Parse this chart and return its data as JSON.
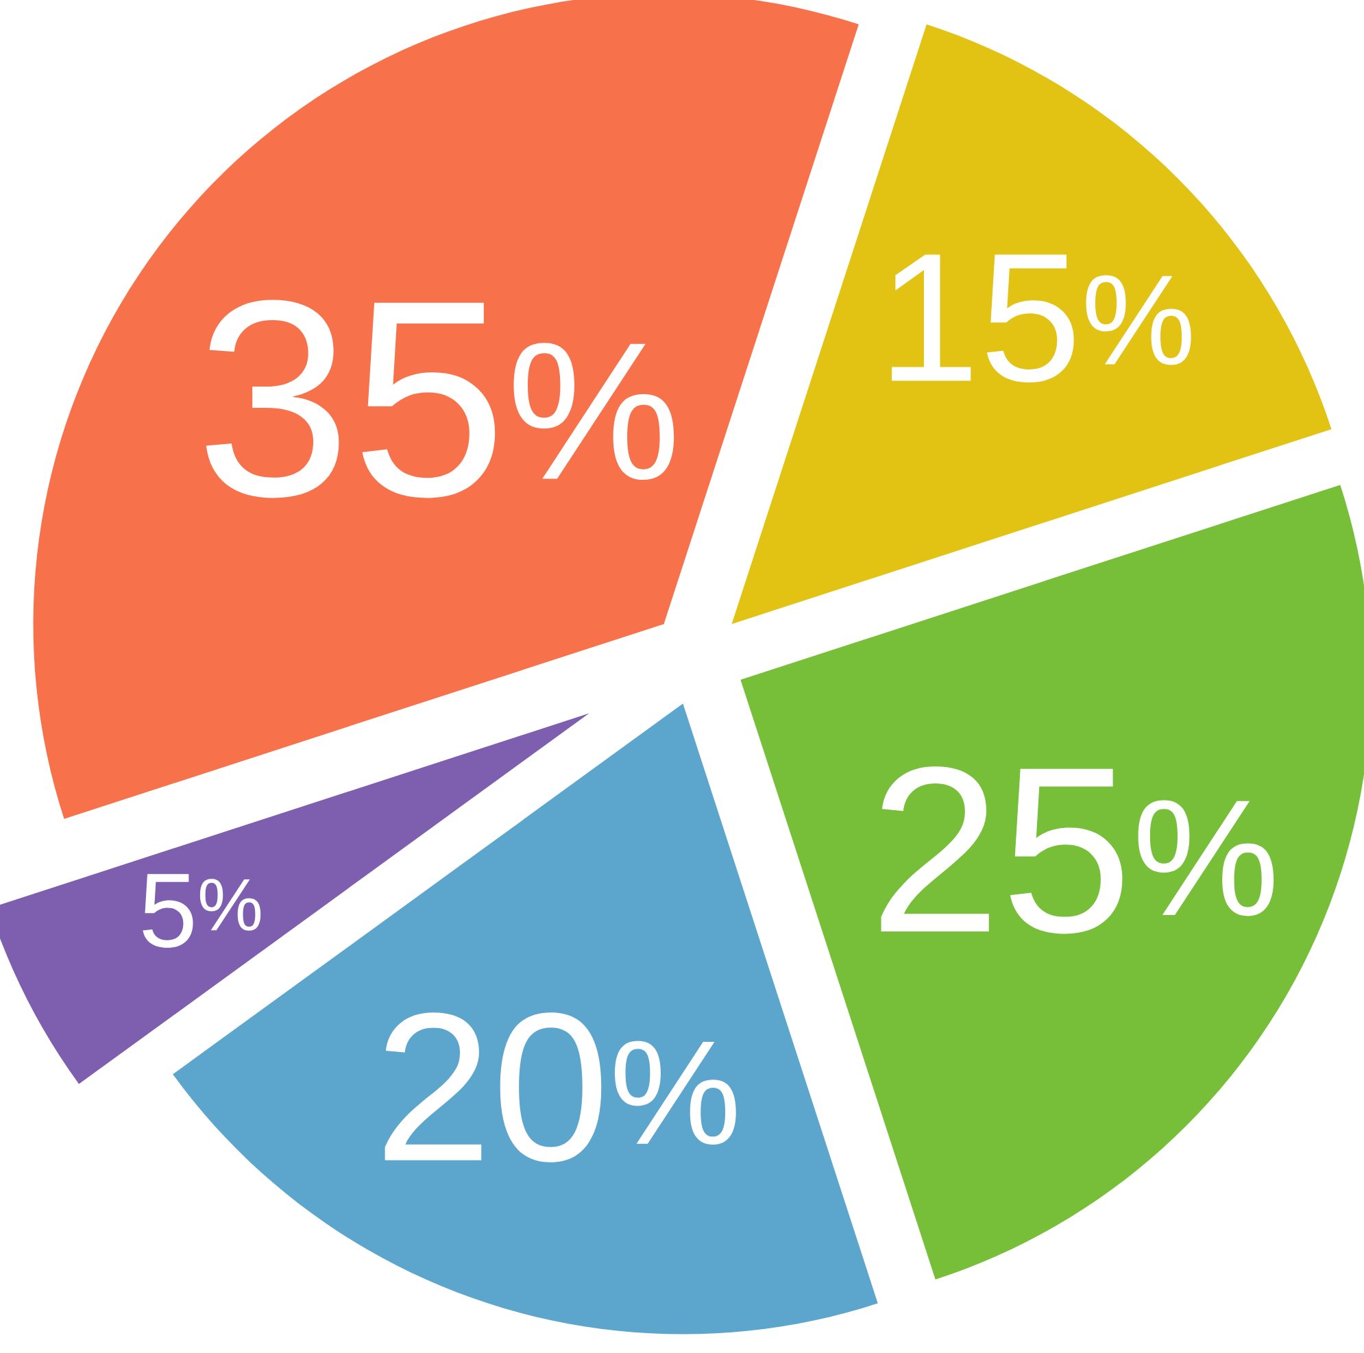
{
  "chart_data": {
    "type": "pie",
    "categories": [
      null,
      null,
      null,
      null,
      null
    ],
    "values": [
      15,
      25,
      20,
      5,
      35
    ],
    "colors": [
      "#e2c213",
      "#77bf38",
      "#5ca5cc",
      "#7d5eaf",
      "#f7714a"
    ],
    "value_labels": [
      "15$^{%}$",
      "25$^{%}$",
      "20$^{%}$",
      "5$^{%}$",
      "35$^{%}$"
    ]
  }
}
